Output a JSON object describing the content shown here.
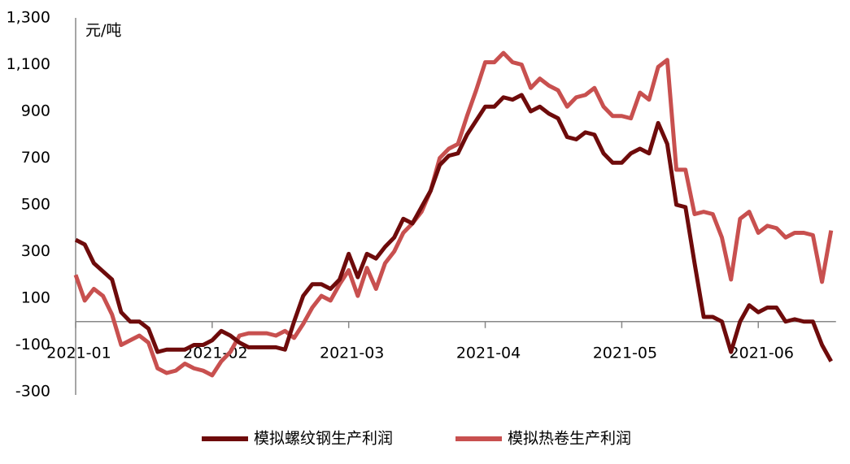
{
  "chart_data": {
    "type": "line",
    "unit_label": "元/吨",
    "categories": [
      "2021-01",
      null,
      null,
      null,
      null,
      null,
      null,
      null,
      null,
      null,
      null,
      null,
      null,
      null,
      null,
      "2021-02",
      null,
      null,
      null,
      null,
      null,
      null,
      null,
      null,
      null,
      null,
      null,
      null,
      null,
      null,
      "2021-03",
      null,
      null,
      null,
      null,
      null,
      null,
      null,
      null,
      null,
      null,
      null,
      null,
      null,
      null,
      "2021-04",
      null,
      null,
      null,
      null,
      null,
      null,
      null,
      null,
      null,
      null,
      null,
      null,
      null,
      null,
      "2021-05",
      null,
      null,
      null,
      null,
      null,
      null,
      null,
      null,
      null,
      null,
      null,
      null,
      null,
      null,
      "2021-06",
      null,
      null,
      null,
      null,
      null,
      null,
      null,
      null
    ],
    "series": [
      {
        "name": "模拟螺纹钢生产利润",
        "color": "#6e0b0b",
        "values": [
          350,
          330,
          250,
          215,
          180,
          40,
          0,
          0,
          -30,
          -130,
          -120,
          -120,
          -120,
          -100,
          -100,
          -80,
          -40,
          -60,
          -90,
          -110,
          -110,
          -110,
          -110,
          -120,
          0,
          110,
          160,
          160,
          140,
          180,
          290,
          190,
          290,
          270,
          320,
          360,
          440,
          420,
          490,
          560,
          670,
          710,
          720,
          800,
          860,
          920,
          920,
          960,
          950,
          970,
          900,
          920,
          890,
          870,
          790,
          780,
          810,
          800,
          720,
          680,
          680,
          720,
          740,
          720,
          850,
          760,
          500,
          490,
          250,
          20,
          20,
          0,
          -130,
          0,
          70,
          40,
          60,
          60,
          0,
          10,
          0,
          0,
          -100,
          -170
        ]
      },
      {
        "name": "模拟热卷生产利润",
        "color": "#c8504f",
        "values": [
          200,
          90,
          140,
          110,
          30,
          -100,
          -80,
          -60,
          -90,
          -200,
          -220,
          -210,
          -180,
          -200,
          -210,
          -230,
          -170,
          -130,
          -60,
          -50,
          -50,
          -50,
          -60,
          -40,
          -70,
          -10,
          60,
          110,
          90,
          160,
          220,
          110,
          230,
          140,
          250,
          300,
          380,
          420,
          470,
          560,
          700,
          740,
          760,
          880,
          990,
          1110,
          1110,
          1150,
          1110,
          1100,
          1000,
          1040,
          1010,
          990,
          920,
          960,
          970,
          1000,
          920,
          880,
          880,
          870,
          980,
          950,
          1090,
          1120,
          650,
          650,
          460,
          470,
          460,
          360,
          180,
          440,
          470,
          380,
          410,
          400,
          360,
          380,
          380,
          370,
          170,
          390
        ]
      }
    ],
    "ylim": [
      -300,
      1300
    ],
    "yticks": [
      {
        "value": 1300,
        "label": "1,300"
      },
      {
        "value": 1100,
        "label": "1,100"
      },
      900,
      700,
      500,
      300,
      100,
      -100,
      -300
    ]
  }
}
